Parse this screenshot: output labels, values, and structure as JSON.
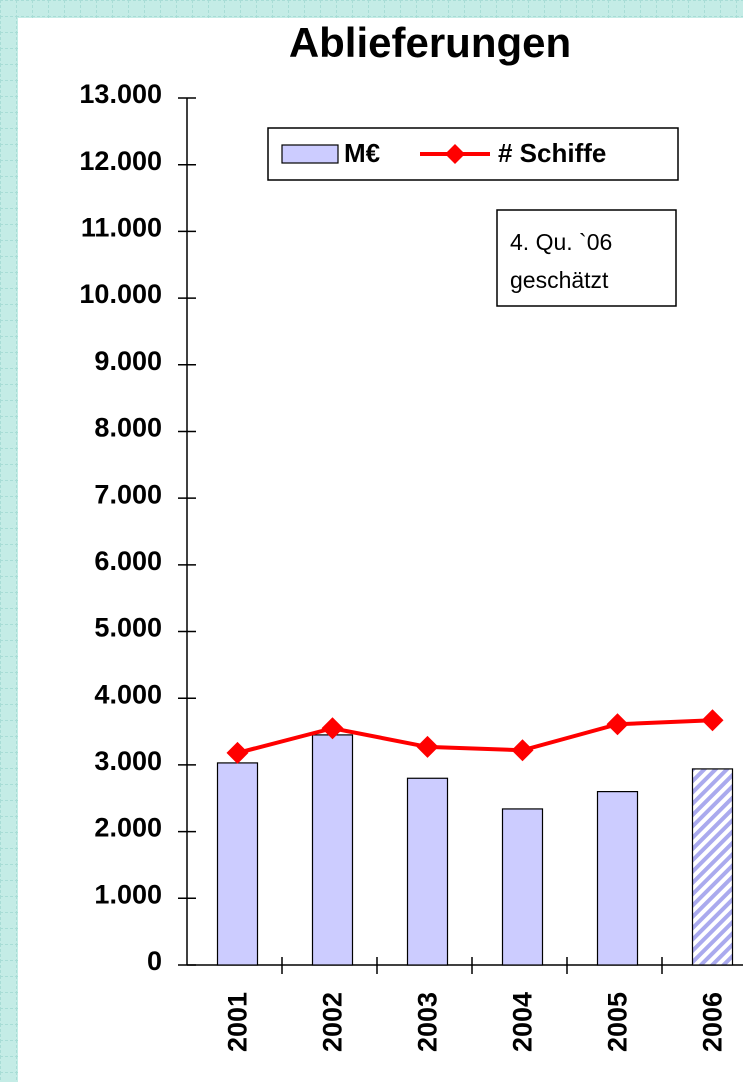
{
  "chart_data": {
    "type": "bar-line",
    "title": "Ablieferungen",
    "categories": [
      "2001",
      "2002",
      "2003",
      "2004",
      "2005",
      "2006"
    ],
    "series": [
      {
        "name": "M€",
        "type": "bar",
        "color": "#ccccff",
        "values": [
          3030,
          3450,
          2800,
          2340,
          2600,
          2940
        ],
        "hatched": [
          false,
          false,
          false,
          false,
          false,
          true
        ]
      },
      {
        "name": "# Schiffe",
        "type": "line",
        "color": "#ff0000",
        "values": [
          3180,
          3550,
          3270,
          3220,
          3610,
          3670
        ]
      }
    ],
    "annotation": [
      "4. Qu. `06",
      "geschätzt"
    ],
    "ylim": [
      0,
      13000
    ],
    "yticks": [
      0,
      {
        "value": 1000,
        "label": "1.000"
      },
      {
        "value": 2000,
        "label": "2.000"
      },
      {
        "value": 3000,
        "label": "3.000"
      },
      {
        "value": 4000,
        "label": "4.000"
      },
      {
        "value": 5000,
        "label": "5.000"
      },
      {
        "value": 6000,
        "label": "6.000"
      },
      {
        "value": 7000,
        "label": "7.000"
      },
      {
        "value": 8000,
        "label": "8.000"
      },
      {
        "value": 9000,
        "label": "9.000"
      },
      {
        "value": 10000,
        "label": "10.000"
      },
      {
        "value": 11000,
        "label": "11.000"
      },
      {
        "value": 12000,
        "label": "12.000"
      },
      {
        "value": 13000,
        "label": "13.000"
      }
    ],
    "legend": "top",
    "grid": false
  }
}
